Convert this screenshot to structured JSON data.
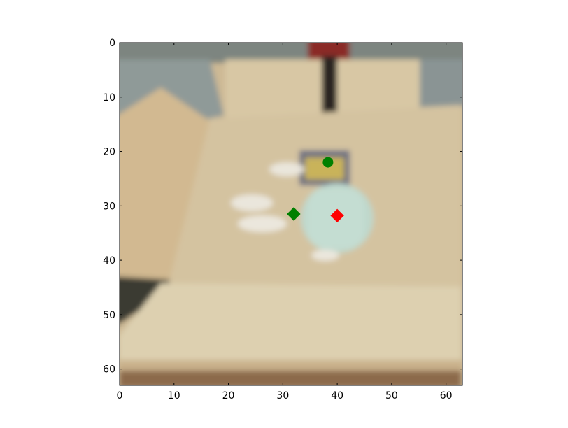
{
  "chart_data": {
    "type": "scatter",
    "title": "",
    "xlabel": "",
    "ylabel": "",
    "xlim": [
      0,
      63
    ],
    "ylim": [
      63,
      0
    ],
    "y_inverted": true,
    "background": "image",
    "grid": false,
    "legend": "none",
    "x_ticks": [
      0,
      10,
      20,
      30,
      40,
      50,
      60
    ],
    "y_ticks": [
      0,
      10,
      20,
      30,
      40,
      50,
      60
    ],
    "series": [
      {
        "marker": "circle",
        "color": "#008000",
        "points": [
          {
            "x": 38.3,
            "y": 22.0
          }
        ]
      },
      {
        "marker": "diamond",
        "color": "#008000",
        "points": [
          {
            "x": 32.0,
            "y": 31.5
          }
        ]
      },
      {
        "marker": "diamond",
        "color": "#ff0000",
        "points": [
          {
            "x": 40.0,
            "y": 31.8
          }
        ]
      }
    ]
  }
}
